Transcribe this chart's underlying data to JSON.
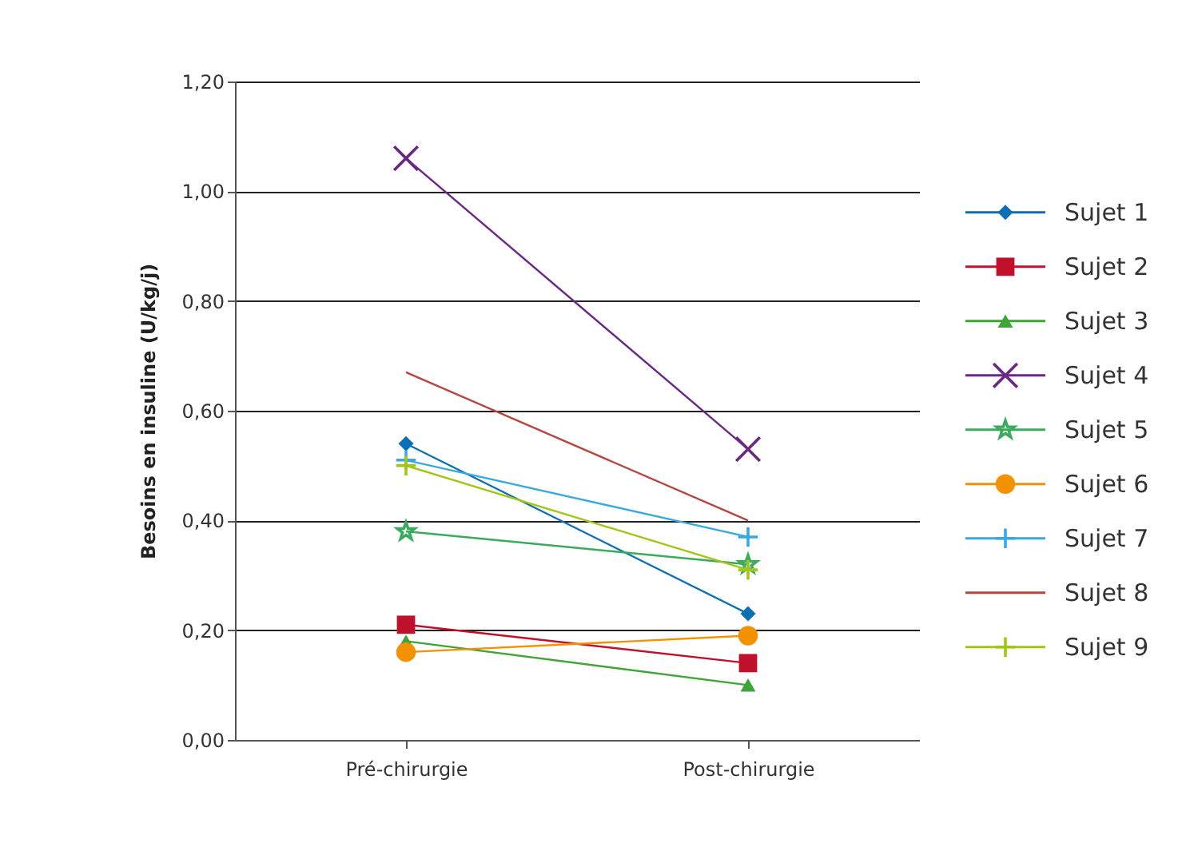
{
  "chart_data": {
    "type": "line",
    "ylabel": "Besoins en insuline (U/kg/j)",
    "categories": [
      "Pré-chirurgie",
      "Post-chirurgie"
    ],
    "ylim": [
      0,
      1.2
    ],
    "yticks": [
      {
        "value": 0,
        "label": "0,00"
      },
      {
        "value": 0.2,
        "label": "0,20"
      },
      {
        "value": 0.4,
        "label": "0,40"
      },
      {
        "value": 0.6,
        "label": "0,60"
      },
      {
        "value": 0.8,
        "label": "0,80"
      },
      {
        "value": 1,
        "label": "1,00"
      },
      {
        "value": 1.2,
        "label": "1,20"
      }
    ],
    "grid": "y",
    "legend": "right",
    "series": [
      {
        "name": "Sujet 1",
        "color": "#0a6fb4",
        "marker": "diamond",
        "values": [
          0.54,
          0.23
        ]
      },
      {
        "name": "Sujet 2",
        "color": "#c0102c",
        "marker": "square",
        "values": [
          0.21,
          0.14
        ]
      },
      {
        "name": "Sujet 3",
        "color": "#3fa535",
        "marker": "triangle",
        "values": [
          0.18,
          0.1
        ]
      },
      {
        "name": "Sujet 4",
        "color": "#6a2784",
        "marker": "x",
        "values": [
          1.06,
          0.53
        ]
      },
      {
        "name": "Sujet 5",
        "color": "#3aaa5c",
        "marker": "star",
        "values": [
          0.38,
          0.32
        ]
      },
      {
        "name": "Sujet 6",
        "color": "#f39200",
        "marker": "circle",
        "values": [
          0.16,
          0.19
        ]
      },
      {
        "name": "Sujet 7",
        "color": "#36a9e1",
        "marker": "cross",
        "values": [
          0.51,
          0.37
        ]
      },
      {
        "name": "Sujet 8",
        "color": "#b5473f",
        "marker": "none",
        "values": [
          0.67,
          0.4
        ]
      },
      {
        "name": "Sujet 9",
        "color": "#a2c617",
        "marker": "cross",
        "values": [
          0.5,
          0.31
        ]
      }
    ]
  }
}
